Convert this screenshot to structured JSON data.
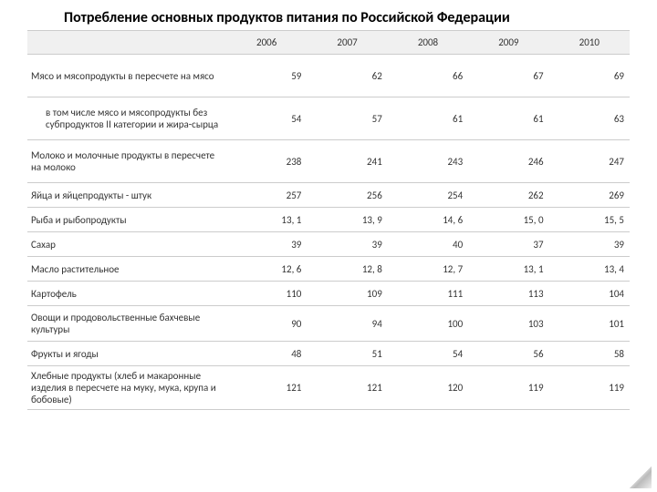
{
  "title": "Потребление основных продуктов питания по  Российской Федерации",
  "table": {
    "type": "table",
    "background_color": "#ffffff",
    "header_background": "#f0f0f0",
    "border_color": "#cccccc",
    "text_color": "#333333",
    "label_fontsize": 11,
    "columns": [
      "",
      "2006",
      "2007",
      "2008",
      "2009",
      "2010"
    ],
    "rows": [
      {
        "label": "Мясо и мясопродукты в пересчете на мясо",
        "values": [
          "59",
          "62",
          "66",
          "67",
          "69"
        ],
        "class": "tall"
      },
      {
        "label": "в том числе мясо и мясопродукты без субпродуктов II категории и жира-сырца",
        "values": [
          "54",
          "57",
          "61",
          "61",
          "63"
        ],
        "class": "tall",
        "indent": true
      },
      {
        "label": "Молоко и молочные продукты в пересчете на молоко",
        "values": [
          "238",
          "241",
          "243",
          "246",
          "247"
        ],
        "class": "tall"
      },
      {
        "label": "Яйца и яйцепродукты - штук",
        "values": [
          "257",
          "256",
          "254",
          "262",
          "269"
        ],
        "class": "short"
      },
      {
        "label": "Рыба и рыбопродукты",
        "values": [
          "13, 1",
          "13, 9",
          "14, 6",
          "15, 0",
          "15, 5"
        ],
        "class": "short"
      },
      {
        "label": "Сахар",
        "values": [
          "39",
          "39",
          "40",
          "37",
          "39"
        ],
        "class": "short"
      },
      {
        "label": "Масло растительное",
        "values": [
          "12, 6",
          "12, 8",
          "12, 7",
          "13, 1",
          "13, 4"
        ],
        "class": "short"
      },
      {
        "label": "Картофель",
        "values": [
          "110",
          "109",
          "111",
          "113",
          "104"
        ],
        "class": "short"
      },
      {
        "label": "Овощи и продовольственные бахчевые культуры",
        "values": [
          "90",
          "94",
          "100",
          "103",
          "101"
        ],
        "class": "med"
      },
      {
        "label": "Фрукты и ягоды",
        "values": [
          "48",
          "51",
          "54",
          "56",
          "58"
        ],
        "class": "short"
      },
      {
        "label": "Хлебные продукты (хлеб и макаронные изделия в пересчете на муку, мука, крупа и бобовые)",
        "values": [
          "121",
          "121",
          "120",
          "119",
          "119"
        ],
        "class": "tall"
      }
    ]
  }
}
